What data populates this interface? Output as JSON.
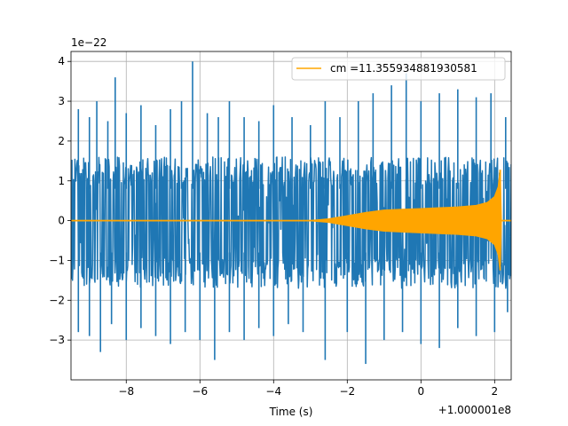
{
  "chart_data": {
    "type": "line",
    "title": "",
    "xlabel": "Time (s)",
    "ylabel": "",
    "x_offset_label": "+1.000001e8",
    "y_scale_label": "1e−22",
    "xlim": [
      -9.5,
      2.45
    ],
    "ylim": [
      -4.0,
      4.25
    ],
    "grid": true,
    "legend": {
      "placement": "top-right"
    },
    "x_ticks": [
      {
        "value": -8,
        "label": "−8"
      },
      {
        "value": -6,
        "label": "−6"
      },
      {
        "value": -4,
        "label": "−4"
      },
      {
        "value": -2,
        "label": "−2"
      },
      {
        "value": 0,
        "label": "0"
      },
      {
        "value": 2,
        "label": "2"
      }
    ],
    "y_ticks": [
      {
        "value": 4,
        "label": "4"
      },
      {
        "value": 3,
        "label": "3"
      },
      {
        "value": 2,
        "label": "2"
      },
      {
        "value": 1,
        "label": "1"
      },
      {
        "value": 0,
        "label": "0"
      },
      {
        "value": -1,
        "label": "−1"
      },
      {
        "value": -2,
        "label": "−2"
      },
      {
        "value": -3,
        "label": "−3"
      }
    ],
    "series": [
      {
        "color": "#1f77b4",
        "kind": "noise-band",
        "x_range": [
          -9.5,
          2.45
        ],
        "band_upper": 1.6,
        "band_lower": -1.7,
        "peaks": [
          [
            -9.3,
            2.8
          ],
          [
            -9.0,
            2.6
          ],
          [
            -8.8,
            3.0
          ],
          [
            -8.5,
            2.5
          ],
          [
            -8.3,
            3.6
          ],
          [
            -8.0,
            2.7
          ],
          [
            -7.6,
            2.9
          ],
          [
            -7.2,
            2.4
          ],
          [
            -6.8,
            2.8
          ],
          [
            -6.5,
            3.0
          ],
          [
            -6.2,
            4.0
          ],
          [
            -5.8,
            2.7
          ],
          [
            -5.5,
            2.6
          ],
          [
            -5.2,
            3.0
          ],
          [
            -4.8,
            2.6
          ],
          [
            -4.4,
            2.5
          ],
          [
            -4.0,
            2.9
          ],
          [
            -3.5,
            2.6
          ],
          [
            -3.0,
            2.4
          ],
          [
            -2.6,
            3.0
          ],
          [
            -2.2,
            2.6
          ],
          [
            -1.7,
            3.0
          ],
          [
            -1.3,
            3.2
          ],
          [
            -0.8,
            3.4
          ],
          [
            -0.4,
            3.7
          ],
          [
            0.0,
            3.0
          ],
          [
            0.5,
            3.2
          ],
          [
            1.0,
            3.3
          ],
          [
            1.5,
            3.1
          ],
          [
            1.9,
            3.2
          ],
          [
            2.3,
            2.6
          ]
        ],
        "troughs": [
          [
            -9.3,
            -2.8
          ],
          [
            -9.0,
            -2.9
          ],
          [
            -8.7,
            -3.3
          ],
          [
            -8.4,
            -2.6
          ],
          [
            -8.0,
            -3.0
          ],
          [
            -7.6,
            -2.7
          ],
          [
            -7.2,
            -2.9
          ],
          [
            -6.8,
            -3.1
          ],
          [
            -6.4,
            -2.8
          ],
          [
            -6.0,
            -3.0
          ],
          [
            -5.6,
            -3.5
          ],
          [
            -5.2,
            -2.8
          ],
          [
            -4.8,
            -3.0
          ],
          [
            -4.4,
            -2.7
          ],
          [
            -4.0,
            -2.9
          ],
          [
            -3.6,
            -2.6
          ],
          [
            -3.2,
            -2.8
          ],
          [
            -2.6,
            -3.5
          ],
          [
            -2.0,
            -2.8
          ],
          [
            -1.5,
            -3.6
          ],
          [
            -1.0,
            -3.0
          ],
          [
            -0.5,
            -2.8
          ],
          [
            0.0,
            -3.1
          ],
          [
            0.5,
            -3.2
          ],
          [
            1.0,
            -2.7
          ],
          [
            1.5,
            -2.9
          ],
          [
            2.0,
            -2.8
          ],
          [
            2.35,
            -2.3
          ]
        ]
      },
      {
        "name": "cm =11.355934881930581",
        "color": "#ffa500",
        "kind": "chirp-envelope",
        "envelope": [
          [
            -9.5,
            0.0
          ],
          [
            -3.0,
            0.0
          ],
          [
            -2.5,
            0.04
          ],
          [
            -2.0,
            0.12
          ],
          [
            -1.5,
            0.2
          ],
          [
            -1.0,
            0.26
          ],
          [
            -0.5,
            0.28
          ],
          [
            0.0,
            0.3
          ],
          [
            0.5,
            0.32
          ],
          [
            1.0,
            0.34
          ],
          [
            1.5,
            0.38
          ],
          [
            1.8,
            0.45
          ],
          [
            2.0,
            0.6
          ],
          [
            2.1,
            0.85
          ],
          [
            2.15,
            1.25
          ],
          [
            2.18,
            0.0
          ],
          [
            2.45,
            0.0
          ]
        ],
        "peak": [
          2.15,
          1.28
        ],
        "trough": [
          2.15,
          -1.1
        ]
      }
    ]
  }
}
